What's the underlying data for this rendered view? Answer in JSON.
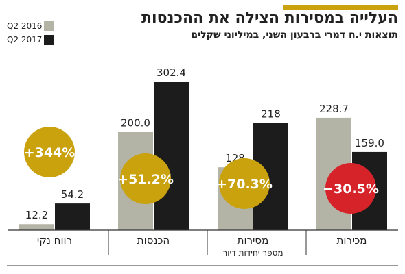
{
  "header": {
    "title": "העלייה במסירות הצילה את ההכנסות",
    "subtitle": "תוצאות י.ח דמרי ברבעון השני, במיליוני שקלים"
  },
  "colors": {
    "accent": "#c9a20e",
    "series_2016": "#b3b3a6",
    "series_2017": "#1c1c1c",
    "badge_positive": "#c9a20e",
    "badge_negative": "#d6232a",
    "axis": "#333333"
  },
  "chart_data": {
    "type": "bar",
    "categories": [
      "רווח נקי",
      "הכנסות",
      "מסירות",
      "מכירות"
    ],
    "category_sublabels": [
      "",
      "",
      "מספר יחידות דיור",
      ""
    ],
    "series": [
      {
        "name": "Q2 2016",
        "values": [
          12.2,
          200.0,
          128,
          228.7
        ],
        "labels": [
          "12.2",
          "200.0",
          "128",
          "228.7"
        ]
      },
      {
        "name": "Q2 2017",
        "values": [
          54.2,
          302.4,
          218,
          159.0
        ],
        "labels": [
          "54.2",
          "302.4",
          "218",
          "159.0"
        ]
      }
    ],
    "changes": [
      "+344%",
      "+51.2%",
      "+70.3%",
      "−30.5%"
    ],
    "change_signs": [
      "positive",
      "positive",
      "positive",
      "negative"
    ],
    "legend_position": "top-left",
    "grid": false
  }
}
